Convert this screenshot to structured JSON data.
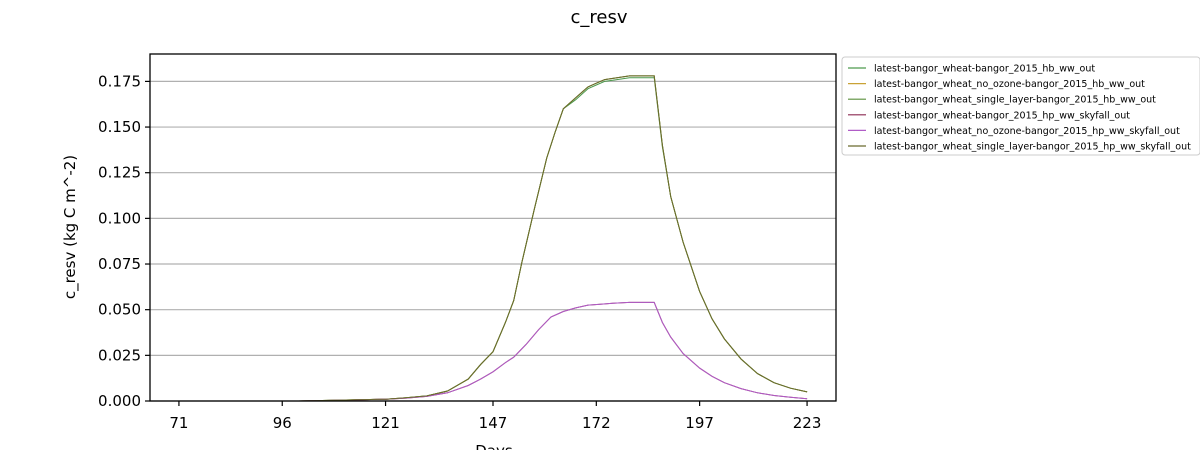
{
  "chart_data": {
    "type": "line",
    "title": "c_resv",
    "xlabel": "Days",
    "ylabel": "c_resv (kg C m^-2)",
    "xlim": [
      64,
      230
    ],
    "ylim": [
      0,
      0.19
    ],
    "x_ticks": [
      71,
      96,
      121,
      147,
      172,
      197,
      223
    ],
    "y_ticks": [
      0.0,
      0.025,
      0.05,
      0.075,
      0.1,
      0.125,
      0.15,
      0.175
    ],
    "y_tick_labels": [
      "0.000",
      "0.025",
      "0.050",
      "0.075",
      "0.100",
      "0.125",
      "0.150",
      "0.175"
    ],
    "grid": "horizontal",
    "legend_position": "outside-right",
    "series": [
      {
        "name": "latest-bangor_wheat-bangor_2015_hb_ww_out",
        "color": "#4d9a4d",
        "x": [
          71,
          100,
          110,
          121,
          126,
          131,
          136,
          141,
          144,
          147,
          150,
          152,
          154,
          157,
          160,
          162,
          164,
          167,
          169,
          170,
          172,
          174,
          177,
          180,
          183,
          186,
          188,
          190,
          193,
          197,
          200,
          203,
          207,
          211,
          215,
          219,
          223
        ],
        "y": [
          0.0,
          0.0,
          0.0005,
          0.001,
          0.0018,
          0.0028,
          0.0055,
          0.012,
          0.02,
          0.027,
          0.043,
          0.055,
          0.076,
          0.105,
          0.133,
          0.147,
          0.16,
          0.165,
          0.169,
          0.171,
          0.173,
          0.175,
          0.176,
          0.177,
          0.177,
          0.177,
          0.139,
          0.112,
          0.087,
          0.06,
          0.045,
          0.034,
          0.023,
          0.015,
          0.01,
          0.007,
          0.005
        ]
      },
      {
        "name": "latest-bangor_wheat_no_ozone-bangor_2015_hb_ww_out",
        "color": "#c9a236",
        "x": [
          71,
          100,
          110,
          121,
          126,
          131,
          136,
          141,
          144,
          147,
          150,
          152,
          154,
          157,
          160,
          162,
          164,
          167,
          169,
          170,
          172,
          174,
          177,
          180,
          183,
          186,
          188,
          190,
          193,
          197,
          200,
          203,
          207,
          211,
          215,
          219,
          223
        ],
        "y": [
          0.0,
          0.0,
          0.0005,
          0.001,
          0.0018,
          0.0028,
          0.0055,
          0.012,
          0.02,
          0.027,
          0.043,
          0.055,
          0.076,
          0.105,
          0.133,
          0.147,
          0.16,
          0.166,
          0.17,
          0.172,
          0.174,
          0.176,
          0.177,
          0.178,
          0.178,
          0.178,
          0.14,
          0.112,
          0.087,
          0.06,
          0.045,
          0.034,
          0.023,
          0.015,
          0.01,
          0.007,
          0.005
        ]
      },
      {
        "name": "latest-bangor_wheat_single_layer-bangor_2015_hb_ww_out",
        "color": "#5a8f3c",
        "x": [
          71,
          100,
          110,
          121,
          126,
          131,
          136,
          141,
          144,
          147,
          150,
          152,
          154,
          157,
          160,
          162,
          164,
          167,
          169,
          170,
          172,
          174,
          177,
          180,
          183,
          186,
          188,
          190,
          193,
          197,
          200,
          203,
          207,
          211,
          215,
          219,
          223
        ],
        "y": [
          0.0,
          0.0,
          0.0005,
          0.001,
          0.0018,
          0.0028,
          0.0055,
          0.012,
          0.02,
          0.027,
          0.043,
          0.055,
          0.076,
          0.105,
          0.133,
          0.147,
          0.16,
          0.166,
          0.17,
          0.172,
          0.174,
          0.176,
          0.177,
          0.178,
          0.178,
          0.178,
          0.14,
          0.112,
          0.087,
          0.06,
          0.045,
          0.034,
          0.023,
          0.015,
          0.01,
          0.007,
          0.005
        ]
      },
      {
        "name": "latest-bangor_wheat-bangor_2015_hp_ww_skyfall_out",
        "color": "#8b2a52",
        "x": [
          71,
          100,
          110,
          121,
          126,
          131,
          136,
          141,
          144,
          147,
          150,
          152,
          155,
          158,
          161,
          164,
          167,
          170,
          173,
          176,
          180,
          184,
          186,
          188,
          190,
          193,
          197,
          200,
          203,
          207,
          211,
          215,
          219,
          223
        ],
        "y": [
          0.0,
          0.0,
          0.0004,
          0.001,
          0.0016,
          0.0025,
          0.0045,
          0.0085,
          0.012,
          0.016,
          0.021,
          0.024,
          0.031,
          0.039,
          0.046,
          0.049,
          0.051,
          0.0525,
          0.053,
          0.0535,
          0.054,
          0.054,
          0.054,
          0.043,
          0.035,
          0.026,
          0.018,
          0.0135,
          0.01,
          0.0068,
          0.0045,
          0.003,
          0.002,
          0.0012
        ]
      },
      {
        "name": "latest-bangor_wheat_no_ozone-bangor_2015_hp_ww_skyfall_out",
        "color": "#b05cc7",
        "x": [
          71,
          100,
          110,
          121,
          126,
          131,
          136,
          141,
          144,
          147,
          150,
          152,
          155,
          158,
          161,
          164,
          167,
          170,
          173,
          176,
          180,
          184,
          186,
          188,
          190,
          193,
          197,
          200,
          203,
          207,
          211,
          215,
          219,
          223
        ],
        "y": [
          0.0,
          0.0,
          0.0004,
          0.001,
          0.0016,
          0.0025,
          0.0045,
          0.0085,
          0.012,
          0.016,
          0.021,
          0.024,
          0.031,
          0.039,
          0.046,
          0.049,
          0.051,
          0.0525,
          0.053,
          0.0535,
          0.054,
          0.054,
          0.054,
          0.043,
          0.035,
          0.026,
          0.018,
          0.0135,
          0.01,
          0.0068,
          0.0045,
          0.003,
          0.002,
          0.0012
        ]
      },
      {
        "name": "latest-bangor_wheat_single_layer-bangor_2015_hp_ww_skyfall_out",
        "color": "#6b6b2e",
        "x": [
          71,
          100,
          110,
          121,
          126,
          131,
          136,
          141,
          144,
          147,
          150,
          152,
          154,
          157,
          160,
          162,
          164,
          167,
          169,
          170,
          172,
          174,
          177,
          180,
          183,
          186,
          188,
          190,
          193,
          197,
          200,
          203,
          207,
          211,
          215,
          219,
          223
        ],
        "y": [
          0.0,
          0.0,
          0.0005,
          0.001,
          0.0018,
          0.0028,
          0.0055,
          0.012,
          0.02,
          0.027,
          0.043,
          0.055,
          0.076,
          0.105,
          0.133,
          0.147,
          0.16,
          0.166,
          0.17,
          0.172,
          0.174,
          0.176,
          0.177,
          0.178,
          0.178,
          0.178,
          0.14,
          0.112,
          0.087,
          0.06,
          0.045,
          0.034,
          0.023,
          0.015,
          0.01,
          0.007,
          0.005
        ]
      }
    ]
  }
}
